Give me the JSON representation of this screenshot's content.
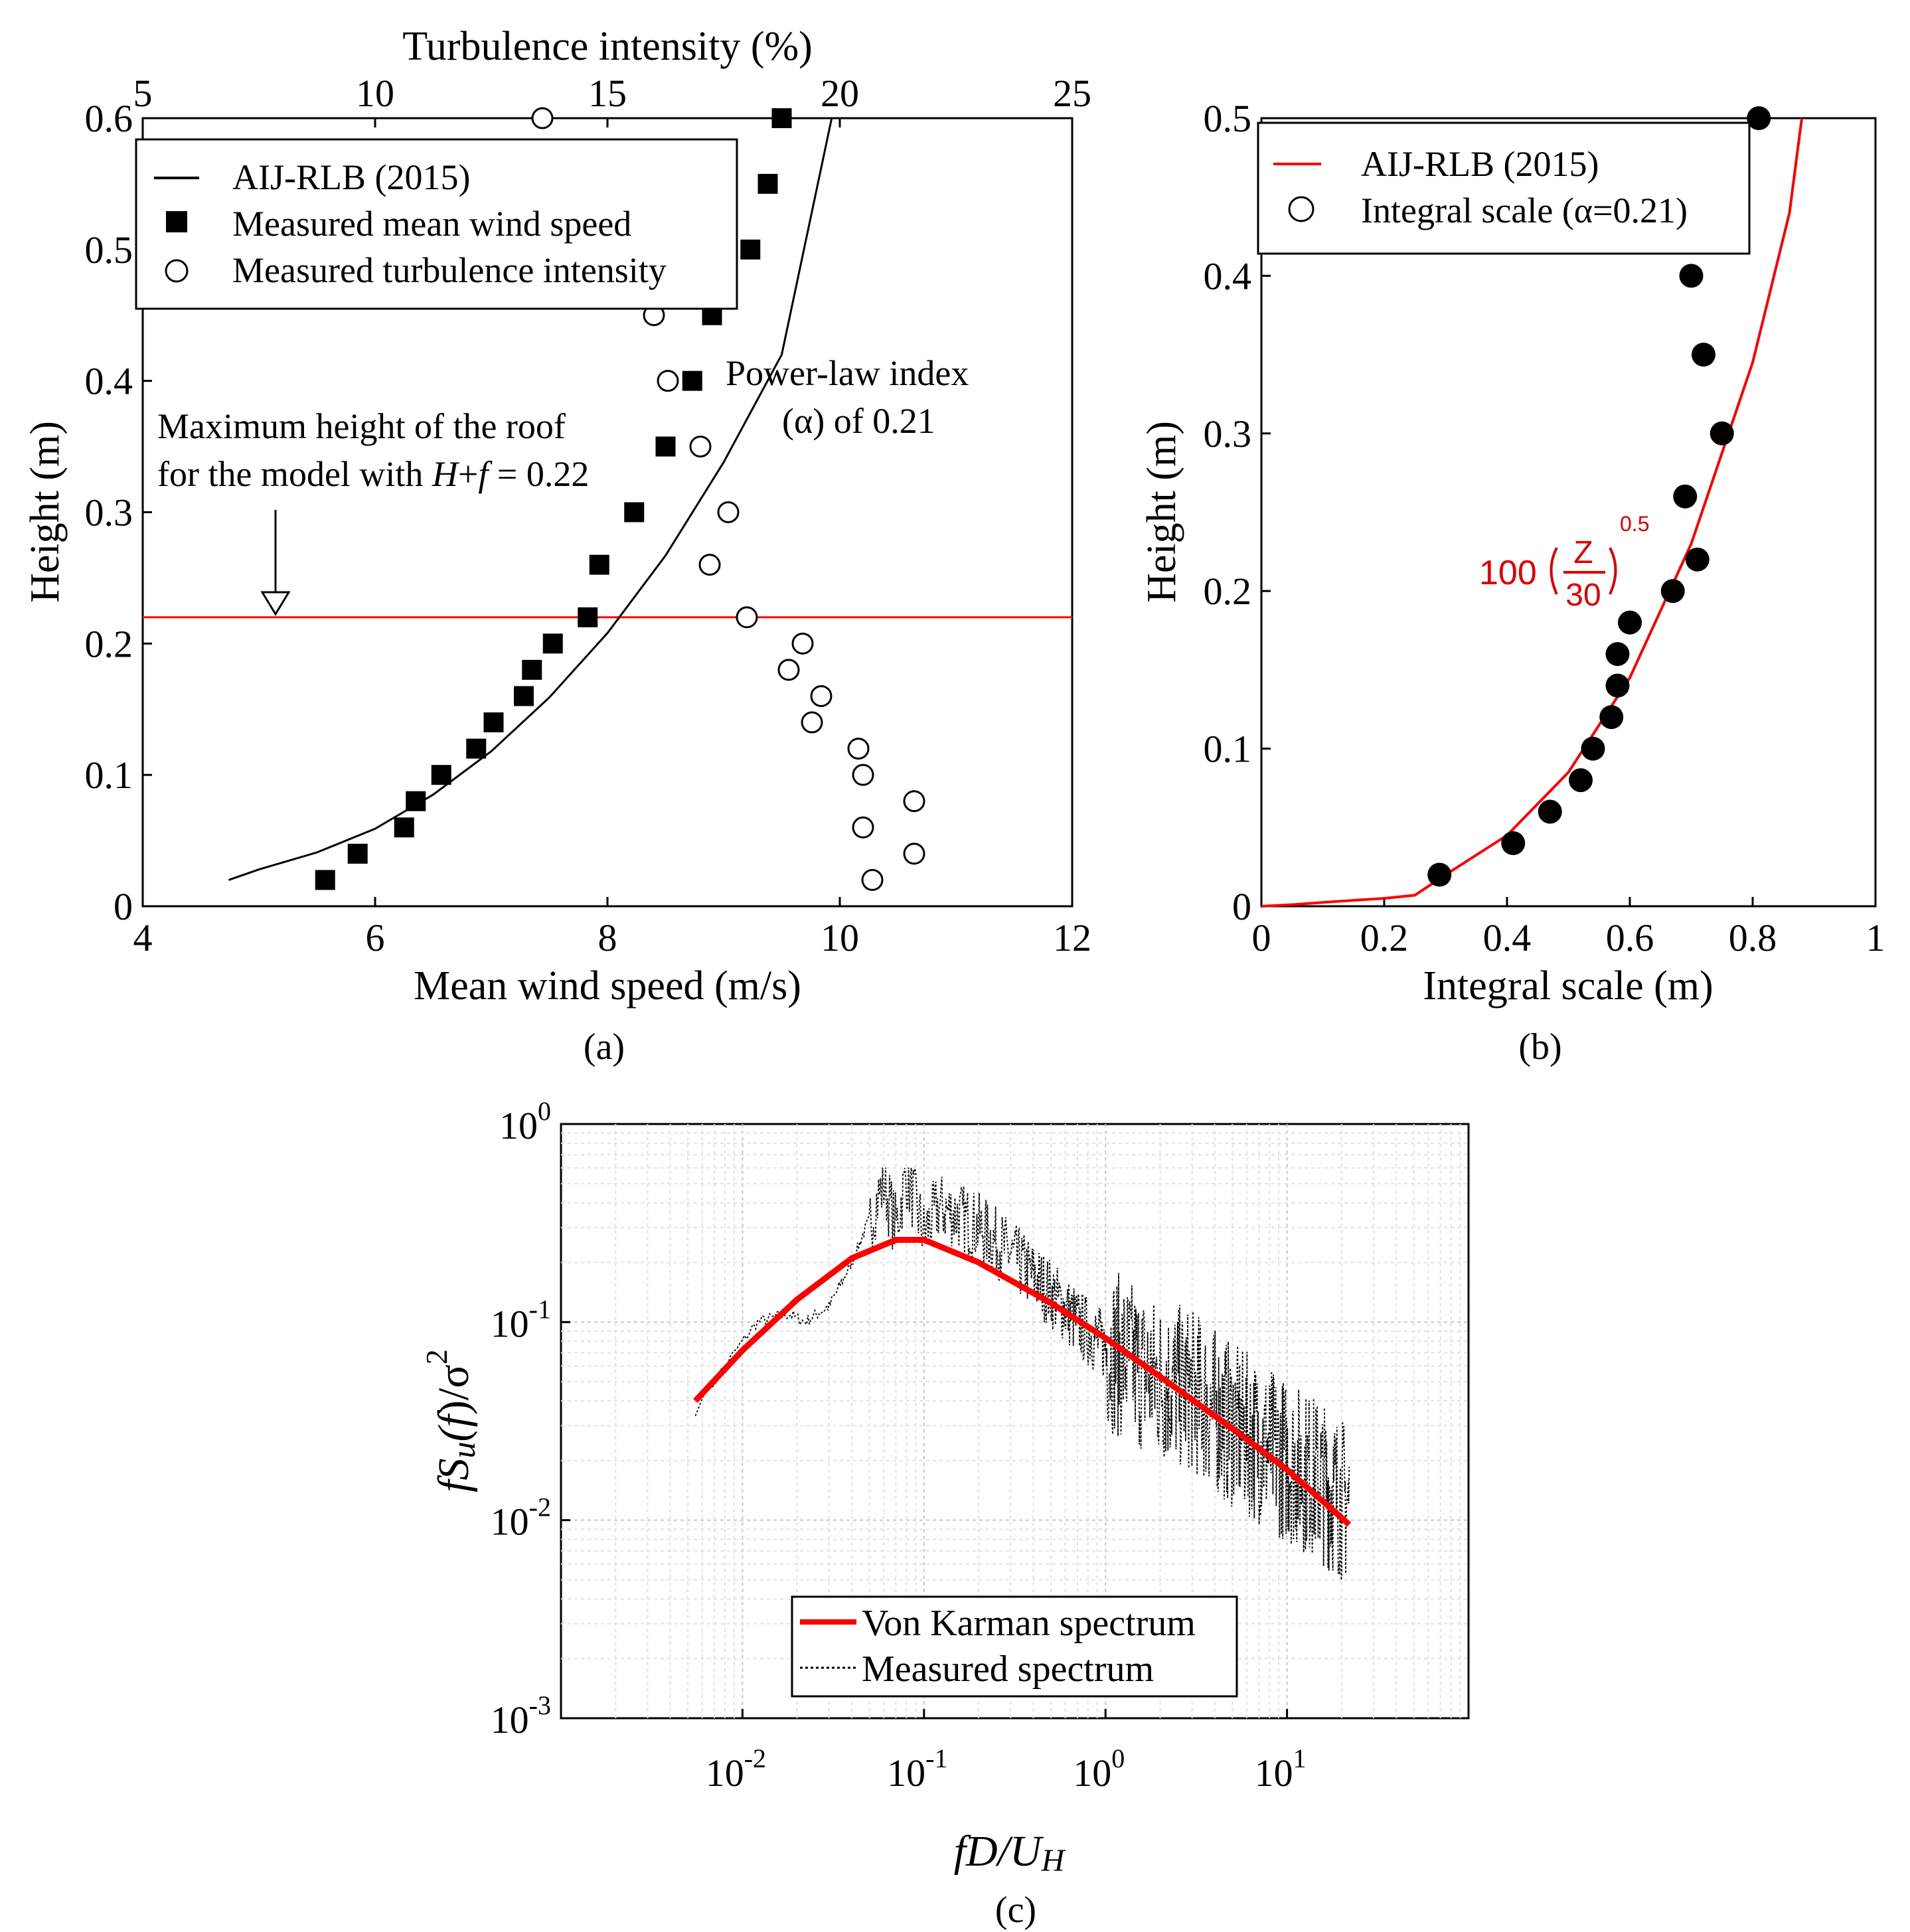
{
  "chart_data": [
    {
      "id": "a",
      "type": "scatter",
      "panel_label": "(a)",
      "xlabel": "Mean wind speed (m/s)",
      "x2label": "Turbulence intensity (%)",
      "ylabel": "Height (m)",
      "xlim": [
        4,
        12
      ],
      "x2lim": [
        5,
        25
      ],
      "ylim": [
        0,
        0.6
      ],
      "xticks": [
        "4",
        "6",
        "8",
        "10",
        "12"
      ],
      "x2ticks": [
        "5",
        "10",
        "15",
        "20",
        "25"
      ],
      "yticks": [
        "0",
        "0.1",
        "0.2",
        "0.3",
        "0.4",
        "0.5",
        "0.6"
      ],
      "legend": [
        "AIJ-RLB (2015)",
        "Measured mean wind speed",
        "Measured turbulence intensity"
      ],
      "legend_position": "top-left",
      "annotations": {
        "roof_line1": "Maximum height of the roof",
        "roof_line2": "for the model with H+f = 0.22",
        "roof_height": 0.22,
        "powerlaw_line1": "Power-law index",
        "powerlaw_line2": "(α) of 0.21"
      },
      "series": [
        {
          "name": "AIJ-RLB (2015)",
          "style": "line",
          "color": "#000000",
          "x": [
            4.74,
            5.0,
            5.5,
            6.0,
            6.5,
            7.0,
            7.5,
            8.0,
            8.5,
            9.0,
            9.5,
            9.93
          ],
          "y": [
            0.02,
            0.028,
            0.041,
            0.059,
            0.085,
            0.118,
            0.159,
            0.208,
            0.267,
            0.338,
            0.42,
            0.6
          ]
        },
        {
          "name": "Measured mean wind speed",
          "style": "filled-square",
          "x": [
            5.57,
            5.85,
            6.25,
            6.35,
            6.57,
            6.87,
            7.02,
            7.28,
            7.35,
            7.53,
            7.83,
            7.93,
            8.23,
            8.5,
            8.73,
            8.9,
            9.23,
            9.38,
            9.5
          ],
          "y": [
            0.02,
            0.04,
            0.06,
            0.08,
            0.1,
            0.12,
            0.14,
            0.16,
            0.18,
            0.2,
            0.22,
            0.26,
            0.3,
            0.35,
            0.4,
            0.45,
            0.5,
            0.55,
            0.6
          ]
        },
        {
          "name": "Measured turbulence intensity",
          "style": "open-circle",
          "axis": "top",
          "x": [
            20.7,
            21.6,
            20.5,
            21.6,
            20.5,
            20.4,
            19.4,
            19.6,
            18.9,
            19.2,
            18.0,
            17.2,
            17.6,
            17.0,
            16.3,
            16.0,
            13.6
          ],
          "y": [
            0.02,
            0.04,
            0.06,
            0.08,
            0.1,
            0.12,
            0.14,
            0.16,
            0.18,
            0.2,
            0.22,
            0.26,
            0.3,
            0.35,
            0.4,
            0.45,
            0.6
          ]
        }
      ]
    },
    {
      "id": "b",
      "type": "scatter",
      "panel_label": "(b)",
      "xlabel": "Integral scale (m)",
      "ylabel": "Height (m)",
      "xlim": [
        0,
        1
      ],
      "ylim": [
        0,
        0.5
      ],
      "xticks": [
        "0",
        "0.2",
        "0.4",
        "0.6",
        "0.8",
        "1"
      ],
      "yticks": [
        "0",
        "0.1",
        "0.2",
        "0.3",
        "0.4",
        "0.5"
      ],
      "legend": [
        "AIJ-RLB (2015)",
        "Integral scale (α=0.21)"
      ],
      "legend_position": "top-left",
      "annotations": {
        "formula_coef": "100",
        "formula_num": "Z",
        "formula_den": "30",
        "formula_exp": "0.5"
      },
      "series": [
        {
          "name": "AIJ-RLB (2015)",
          "style": "line",
          "color": "#ff0000",
          "x": [
            0.0,
            0.05,
            0.12,
            0.2,
            0.25,
            0.3,
            0.4,
            0.5,
            0.6,
            0.7,
            0.8,
            0.86,
            0.88
          ],
          "y": [
            0.0,
            0.001,
            0.003,
            0.005,
            0.007,
            0.02,
            0.045,
            0.085,
            0.145,
            0.23,
            0.345,
            0.44,
            0.5
          ]
        },
        {
          "name": "Integral scale (α=0.21)",
          "style": "filled-circle",
          "x": [
            0.29,
            0.41,
            0.47,
            0.52,
            0.54,
            0.57,
            0.58,
            0.58,
            0.6,
            0.67,
            0.71,
            0.69,
            0.75,
            0.72,
            0.7,
            0.81
          ],
          "y": [
            0.02,
            0.04,
            0.06,
            0.08,
            0.1,
            0.12,
            0.14,
            0.16,
            0.18,
            0.2,
            0.22,
            0.26,
            0.3,
            0.35,
            0.4,
            0.5
          ]
        }
      ]
    },
    {
      "id": "c",
      "type": "line",
      "panel_label": "(c)",
      "xscale": "log",
      "yscale": "log",
      "xlabel_main": "fD",
      "xlabel_sub": "/U",
      "xlabel_subscript": "H",
      "ylabel": "fSu(f)/σ2",
      "xlim": [
        0.001,
        100
      ],
      "ylim": [
        0.001,
        1
      ],
      "xticks": [
        {
          "base": "10",
          "exp": "-2",
          "value": 0.01
        },
        {
          "base": "10",
          "exp": "-1",
          "value": 0.1
        },
        {
          "base": "10",
          "exp": "0",
          "value": 1
        },
        {
          "base": "10",
          "exp": "1",
          "value": 10
        }
      ],
      "yticks": [
        {
          "base": "10",
          "exp": "-3",
          "value": 0.001
        },
        {
          "base": "10",
          "exp": "-2",
          "value": 0.01
        },
        {
          "base": "10",
          "exp": "-1",
          "value": 0.1
        },
        {
          "base": "10",
          "exp": "0",
          "value": 1
        }
      ],
      "grid": true,
      "legend": [
        "Von Karman spectrum",
        "Measured spectrum"
      ],
      "legend_position": "bottom-center",
      "series": [
        {
          "name": "Von Karman spectrum",
          "style": "line",
          "color": "#ff0000",
          "x": [
            0.0055,
            0.01,
            0.02,
            0.04,
            0.07,
            0.1,
            0.2,
            0.5,
            1,
            2,
            5,
            10,
            22
          ],
          "y": [
            0.04,
            0.072,
            0.13,
            0.21,
            0.26,
            0.26,
            0.2,
            0.125,
            0.083,
            0.053,
            0.029,
            0.018,
            0.0095
          ]
        },
        {
          "name": "Measured spectrum",
          "style": "dotted",
          "color": "#000000",
          "x": [
            0.0055,
            0.008,
            0.012,
            0.018,
            0.022,
            0.03,
            0.04,
            0.05,
            0.06,
            0.07,
            0.08,
            0.1,
            0.12,
            0.15,
            0.2,
            0.3,
            0.5,
            0.7,
            1,
            2,
            3,
            5,
            7,
            10,
            15,
            22
          ],
          "y": [
            0.036,
            0.06,
            0.1,
            0.11,
            0.1,
            0.12,
            0.2,
            0.33,
            0.5,
            0.3,
            0.55,
            0.28,
            0.38,
            0.35,
            0.3,
            0.22,
            0.14,
            0.1,
            0.075,
            0.05,
            0.045,
            0.03,
            0.025,
            0.02,
            0.016,
            0.012
          ]
        }
      ]
    }
  ]
}
